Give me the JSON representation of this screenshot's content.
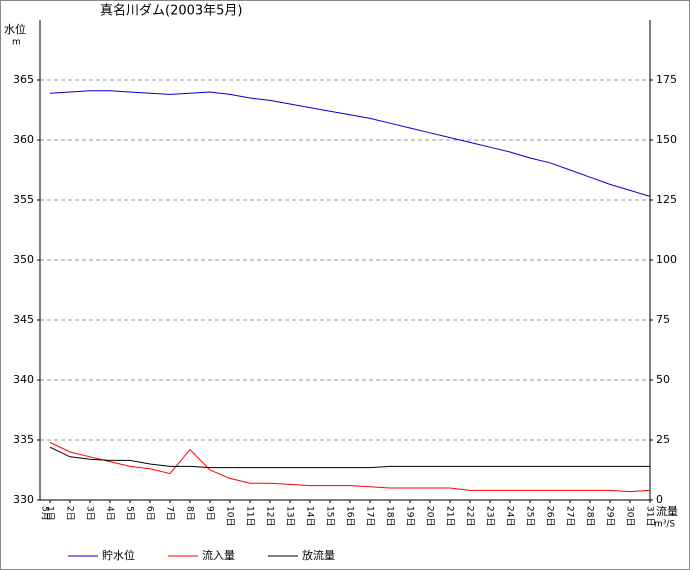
{
  "chart_data": {
    "type": "line",
    "title": "真名川ダム(2003年5月)",
    "ylabel": "水位",
    "yunit": "m",
    "y2label": "流量",
    "y2unit": "m³/S",
    "xlabel": "5月",
    "categories": [
      "1日",
      "2日",
      "3日",
      "4日",
      "5日",
      "6日",
      "7日",
      "8日",
      "9日",
      "10日",
      "11日",
      "12日",
      "13日",
      "14日",
      "15日",
      "16日",
      "17日",
      "18日",
      "19日",
      "20日",
      "21日",
      "22日",
      "23日",
      "24日",
      "25日",
      "26日",
      "27日",
      "28日",
      "29日",
      "30日",
      "31日"
    ],
    "ylim": [
      330,
      370
    ],
    "yticks": [
      330,
      335,
      340,
      345,
      350,
      355,
      360,
      365
    ],
    "y2lim": [
      0,
      200
    ],
    "y2ticks": [
      0,
      25,
      50,
      75,
      100,
      125,
      150,
      175
    ],
    "grid": true,
    "series": [
      {
        "name": "貯水位",
        "color": "#0000cc",
        "axis": "y",
        "values": [
          363.9,
          364.0,
          364.1,
          364.1,
          364.0,
          363.9,
          363.8,
          363.9,
          364.0,
          363.8,
          363.5,
          363.3,
          363.0,
          362.7,
          362.4,
          362.1,
          361.8,
          361.4,
          361.0,
          360.6,
          360.2,
          359.8,
          359.4,
          359.0,
          358.5,
          358.1,
          357.5,
          356.9,
          356.3,
          355.8,
          355.3
        ]
      },
      {
        "name": "流入量",
        "color": "#ff0000",
        "axis": "y2",
        "values": [
          24,
          20,
          18,
          16,
          14,
          13,
          11,
          21,
          12.5,
          9,
          7,
          7,
          6.5,
          6,
          6,
          6,
          5.5,
          5,
          5,
          5,
          5,
          4,
          4,
          4,
          4,
          4,
          4,
          4,
          4,
          3.5,
          4
        ]
      },
      {
        "name": "放流量",
        "color": "#000000",
        "axis": "y2",
        "values": [
          22,
          18,
          17,
          16.5,
          16.5,
          15,
          14,
          14,
          13.5,
          13.5,
          13.5,
          13.5,
          13.5,
          13.5,
          13.5,
          13.5,
          13.5,
          14,
          14,
          14,
          14,
          14,
          14,
          14,
          14,
          14,
          14,
          14,
          14,
          14,
          14
        ]
      }
    ]
  }
}
